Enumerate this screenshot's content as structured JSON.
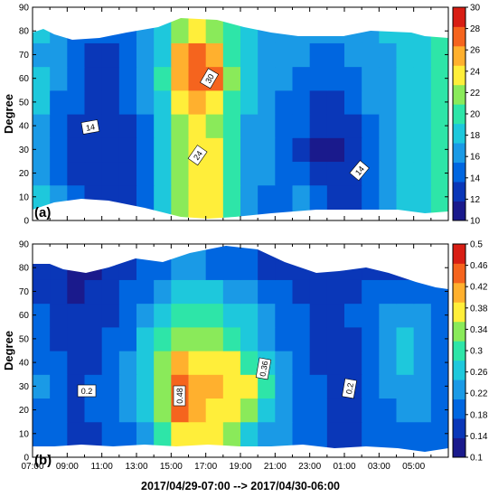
{
  "chart_data": [
    {
      "type": "heatmap",
      "panel_label": "(a)",
      "ylabel": "Degree",
      "ylim": [
        0,
        90
      ],
      "yticks": [
        "0",
        "10",
        "20",
        "30",
        "40",
        "50",
        "60",
        "70",
        "80",
        "90"
      ],
      "colorbar": {
        "range": [
          10,
          30
        ],
        "levels": [
          10,
          12,
          14,
          16,
          18,
          20,
          22,
          24,
          26,
          28,
          30
        ],
        "tick_labels": [
          "10",
          "12",
          "14",
          "16",
          "18",
          "20",
          "22",
          "24",
          "26",
          "28",
          "30"
        ]
      },
      "contour_labels": [
        "14",
        "30",
        "24",
        "14"
      ],
      "x": [
        "07:00",
        "08:00",
        "09:00",
        "10:00",
        "11:00",
        "12:00",
        "13:00",
        "14:00",
        "15:00",
        "16:00",
        "17:00",
        "18:00",
        "19:00",
        "20:00",
        "21:00",
        "22:00",
        "23:00",
        "00:00",
        "01:00",
        "02:00",
        "03:00",
        "04:00",
        "05:00",
        "06:00"
      ],
      "y": [
        10,
        20,
        30,
        40,
        50,
        60,
        70,
        80
      ],
      "values": [
        [
          19,
          16,
          14,
          13,
          12,
          13,
          15,
          18,
          22,
          25,
          24,
          20,
          17,
          15,
          15,
          16,
          14,
          13,
          13,
          15,
          17,
          18,
          19,
          20
        ],
        [
          17,
          15,
          13,
          12,
          12,
          13,
          15,
          18,
          22,
          25,
          24,
          20,
          17,
          16,
          15,
          15,
          13,
          12,
          13,
          15,
          17,
          18,
          19,
          20
        ],
        [
          17,
          15,
          13,
          12,
          12,
          13,
          15,
          18,
          22,
          24,
          24,
          20,
          17,
          16,
          15,
          13,
          11,
          11,
          13,
          15,
          17,
          18,
          19,
          20
        ],
        [
          17,
          15,
          13,
          12,
          12,
          13,
          15,
          18,
          23,
          24,
          23,
          20,
          17,
          16,
          15,
          14,
          12,
          12,
          13,
          15,
          17,
          18,
          19,
          20
        ],
        [
          18,
          15,
          14,
          13,
          13,
          14,
          16,
          19,
          25,
          27,
          25,
          21,
          18,
          17,
          15,
          14,
          13,
          13,
          14,
          16,
          17,
          18,
          19,
          20
        ],
        [
          18,
          16,
          14,
          13,
          13,
          14,
          16,
          20,
          27,
          30,
          28,
          22,
          18,
          17,
          16,
          15,
          14,
          14,
          15,
          16,
          17,
          18,
          19,
          20
        ],
        [
          17,
          16,
          14,
          13,
          13,
          14,
          16,
          19,
          26,
          29,
          27,
          21,
          18,
          17,
          16,
          16,
          15,
          15,
          16,
          17,
          17,
          18,
          19,
          20
        ],
        [
          18,
          16,
          15,
          14,
          14,
          15,
          16,
          18,
          22,
          24,
          23,
          20,
          18,
          17,
          16,
          16,
          16,
          16,
          16,
          17,
          18,
          18,
          19,
          20
        ]
      ]
    },
    {
      "type": "heatmap",
      "panel_label": "(b)",
      "ylabel": "Degree",
      "ylim": [
        0,
        90
      ],
      "yticks": [
        "0",
        "10",
        "20",
        "30",
        "40",
        "50",
        "60",
        "70",
        "80",
        "90"
      ],
      "xticks": [
        "07:00",
        "09:00",
        "11:00",
        "13:00",
        "15:00",
        "17:00",
        "19:00",
        "21:00",
        "23:00",
        "01:00",
        "03:00",
        "05:00"
      ],
      "xlabel": "2017/04/29-07:00 --> 2017/04/30-06:00",
      "colorbar": {
        "range": [
          0.1,
          0.5
        ],
        "levels": [
          0.1,
          0.14,
          0.18,
          0.22,
          0.26,
          0.3,
          0.34,
          0.38,
          0.42,
          0.46,
          0.5
        ],
        "tick_labels": [
          "0.1",
          "0.14",
          "0.18",
          "0.22",
          "0.26",
          "0.3",
          "0.34",
          "0.38",
          "0.42",
          "0.46",
          "0.5"
        ]
      },
      "contour_labels": [
        "0.2",
        "0.48",
        "0.36",
        "0.2"
      ],
      "x": [
        "07:00",
        "08:00",
        "09:00",
        "10:00",
        "11:00",
        "12:00",
        "13:00",
        "14:00",
        "15:00",
        "16:00",
        "17:00",
        "18:00",
        "19:00",
        "20:00",
        "21:00",
        "22:00",
        "23:00",
        "00:00",
        "01:00",
        "02:00",
        "03:00",
        "04:00",
        "05:00",
        "06:00"
      ],
      "y": [
        10,
        20,
        30,
        40,
        50,
        60,
        70,
        80
      ],
      "values": [
        [
          0.2,
          0.18,
          0.16,
          0.17,
          0.19,
          0.21,
          0.25,
          0.31,
          0.38,
          0.4,
          0.38,
          0.34,
          0.29,
          0.25,
          0.22,
          0.2,
          0.18,
          0.16,
          0.16,
          0.18,
          0.2,
          0.21,
          0.2,
          0.19
        ],
        [
          0.2,
          0.18,
          0.17,
          0.18,
          0.2,
          0.23,
          0.28,
          0.36,
          0.46,
          0.44,
          0.4,
          0.38,
          0.34,
          0.28,
          0.23,
          0.21,
          0.2,
          0.17,
          0.16,
          0.18,
          0.21,
          0.24,
          0.22,
          0.19
        ],
        [
          0.22,
          0.19,
          0.17,
          0.18,
          0.2,
          0.24,
          0.29,
          0.37,
          0.49,
          0.45,
          0.42,
          0.41,
          0.38,
          0.3,
          0.24,
          0.21,
          0.19,
          0.15,
          0.15,
          0.18,
          0.22,
          0.25,
          0.23,
          0.2
        ],
        [
          0.2,
          0.18,
          0.16,
          0.17,
          0.19,
          0.23,
          0.28,
          0.36,
          0.42,
          0.41,
          0.4,
          0.38,
          0.33,
          0.28,
          0.23,
          0.2,
          0.17,
          0.14,
          0.15,
          0.18,
          0.23,
          0.26,
          0.24,
          0.21
        ],
        [
          0.19,
          0.17,
          0.15,
          0.16,
          0.18,
          0.21,
          0.26,
          0.33,
          0.36,
          0.36,
          0.35,
          0.33,
          0.29,
          0.25,
          0.21,
          0.19,
          0.17,
          0.16,
          0.17,
          0.2,
          0.24,
          0.26,
          0.23,
          0.2
        ],
        [
          0.18,
          0.16,
          0.14,
          0.15,
          0.17,
          0.2,
          0.24,
          0.29,
          0.32,
          0.32,
          0.31,
          0.29,
          0.26,
          0.22,
          0.19,
          0.18,
          0.17,
          0.17,
          0.18,
          0.2,
          0.23,
          0.24,
          0.22,
          0.19
        ],
        [
          0.17,
          0.15,
          0.13,
          0.14,
          0.16,
          0.18,
          0.21,
          0.25,
          0.27,
          0.27,
          0.26,
          0.24,
          0.22,
          0.2,
          0.18,
          0.17,
          0.16,
          0.16,
          0.17,
          0.18,
          0.2,
          0.21,
          0.2,
          0.18
        ],
        [
          0.15,
          0.14,
          0.13,
          0.13,
          0.14,
          0.16,
          0.18,
          0.2,
          0.22,
          0.22,
          0.21,
          0.2,
          0.19,
          0.17,
          0.16,
          0.15,
          0.15,
          0.15,
          0.15,
          0.16,
          0.17,
          0.17,
          0.17,
          0.16
        ]
      ]
    }
  ],
  "palette": [
    "#1a1a8c",
    "#0a37b8",
    "#0066e0",
    "#1a9ae6",
    "#1ec8dc",
    "#2ee5a8",
    "#8aea5a",
    "#ffee3a",
    "#ffb02e",
    "#f5641e",
    "#d81e14"
  ]
}
